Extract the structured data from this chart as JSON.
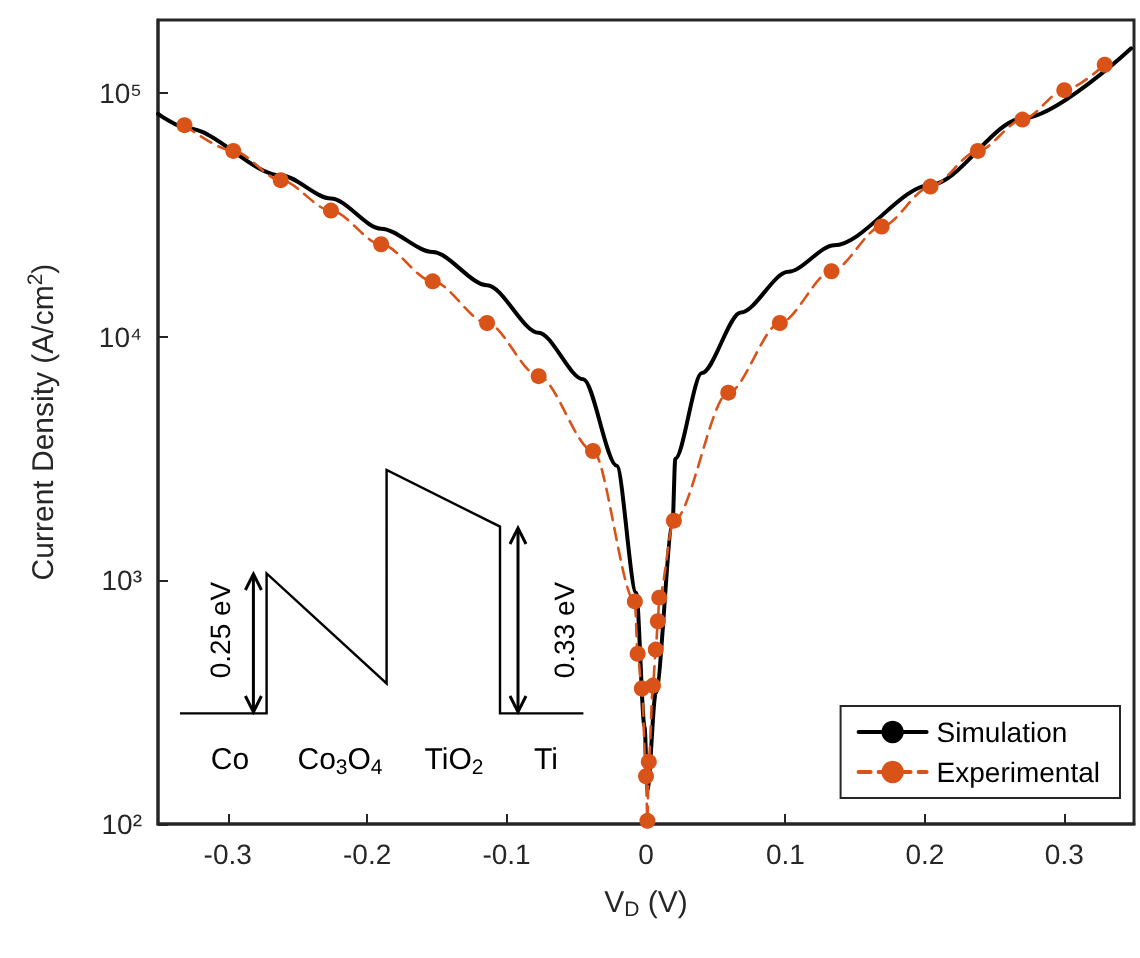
{
  "chart_data": {
    "type": "line",
    "xlabel": "V$_{D}$ (V)",
    "ylabel": "Current Density (A/cm$^{2}$)",
    "xlim": [
      -0.35,
      0.35
    ],
    "xticks": [
      -0.3,
      -0.2,
      -0.1,
      0,
      0.1,
      0.2,
      0.3
    ],
    "ylim": [
      100,
      200000
    ],
    "yticks": [
      {
        "value": 100,
        "label": "10²"
      },
      {
        "value": 1000,
        "label": "10³"
      },
      {
        "value": 10000,
        "label": "10⁴"
      },
      {
        "value": 100000,
        "label": "10⁵"
      }
    ],
    "log": "y",
    "grid": false,
    "legend": "bottom right",
    "series": [
      {
        "name": "Simulation",
        "color": "#000000",
        "line_style": "solid",
        "marker": "none",
        "x": [
          -0.35,
          -0.329,
          -0.262,
          -0.226,
          -0.19,
          -0.153,
          -0.114,
          -0.077,
          -0.045,
          -0.021,
          -0.007,
          -0.001,
          0.001,
          0.007,
          0.019,
          0.021,
          0.04,
          0.068,
          0.102,
          0.135,
          0.204,
          0.27,
          0.348
        ],
        "values": [
          82400,
          71800,
          46100,
          37000,
          27800,
          22300,
          16300,
          10400,
          6700,
          2960,
          890,
          250,
          138,
          345,
          1680,
          3160,
          7100,
          12600,
          18500,
          23800,
          42000,
          78800,
          153000
        ]
      },
      {
        "name": "Experimental",
        "color": "#d95319",
        "line_style": "dashed",
        "marker": "circle",
        "x": [
          -0.331,
          -0.296,
          -0.262,
          -0.226,
          -0.19,
          -0.153,
          -0.114,
          -0.077,
          -0.038,
          -0.008,
          -0.006,
          -0.003,
          0,
          0.001,
          0.002,
          0.005,
          0.007,
          0.0085,
          0.0095,
          0.02,
          0.059,
          0.096,
          0.133,
          0.169,
          0.204,
          0.238,
          0.27,
          0.3,
          0.329
        ],
        "values": [
          74000,
          58000,
          44000,
          33000,
          24000,
          16900,
          11400,
          6900,
          3400,
          820,
          500,
          360,
          157,
          103,
          180,
          370,
          520,
          680,
          850,
          1760,
          5900,
          11400,
          18600,
          28400,
          41400,
          58000,
          78000,
          103000,
          131000
        ]
      }
    ],
    "annotations": [
      "Co",
      "Co$_{3}$O$_{4}$",
      "TiO$_{2}$",
      "Ti",
      "0.25 eV",
      "0.33 eV"
    ]
  }
}
